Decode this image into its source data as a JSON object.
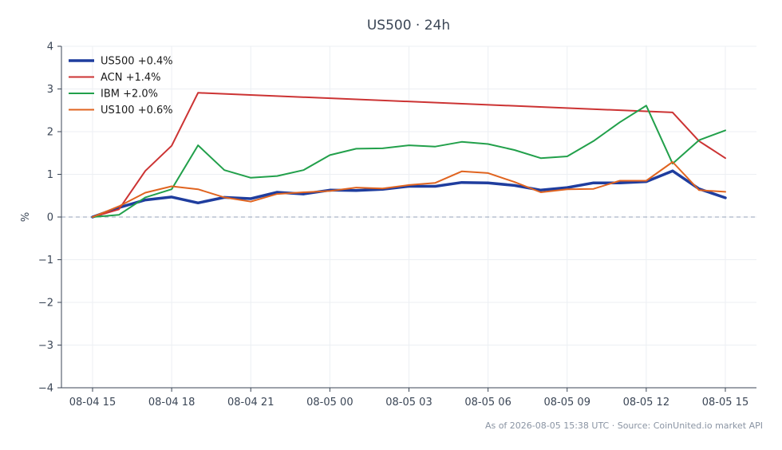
{
  "chart_data": {
    "type": "line",
    "title": "US500 · 24h",
    "xlabel": "",
    "ylabel": "%",
    "ylim": [
      -4,
      4
    ],
    "yticks": [
      -4,
      -3,
      -2,
      -1,
      0,
      1,
      2,
      3,
      4
    ],
    "ytick_labels": [
      "−4",
      "−3",
      "−2",
      "−1",
      "0",
      "1",
      "2",
      "3",
      "4"
    ],
    "x_tick_labels": [
      "08-04 15",
      "08-04 18",
      "08-04 21",
      "08-05 00",
      "08-05 03",
      "08-05 06",
      "08-05 09",
      "08-05 12",
      "08-05 15"
    ],
    "x_tick_hours": [
      0,
      3,
      6,
      9,
      12,
      15,
      18,
      21,
      24
    ],
    "x_hours": [
      0,
      1,
      2,
      3,
      4,
      5,
      6,
      7,
      8,
      9,
      10,
      11,
      12,
      13,
      14,
      15,
      16,
      17,
      18,
      19,
      20,
      21,
      22,
      23,
      24
    ],
    "grid": true,
    "zero_line": true,
    "legend_position": "top-left",
    "series": [
      {
        "name": "US500 +0.4%",
        "color": "#1f3d9e",
        "width": 3.5,
        "values": [
          0.0,
          0.22,
          0.4,
          0.47,
          0.33,
          0.46,
          0.43,
          0.58,
          0.54,
          0.63,
          0.62,
          0.65,
          0.72,
          0.72,
          0.81,
          0.8,
          0.74,
          0.63,
          0.69,
          0.8,
          0.8,
          0.83,
          1.08,
          0.66,
          0.45
        ]
      },
      {
        "name": "ACN +1.4%",
        "color": "#cc3333",
        "width": 2,
        "x": [
          0,
          1,
          2,
          3,
          4,
          22,
          23,
          24
        ],
        "values": [
          0.0,
          0.18,
          1.08,
          1.67,
          2.91,
          2.45,
          1.78,
          1.38
        ]
      },
      {
        "name": "IBM +2.0%",
        "color": "#22a04b",
        "width": 2,
        "values": [
          0.0,
          0.05,
          0.46,
          0.65,
          1.68,
          1.1,
          0.92,
          0.96,
          1.1,
          1.45,
          1.6,
          1.61,
          1.68,
          1.65,
          1.76,
          1.71,
          1.57,
          1.38,
          1.42,
          1.78,
          2.22,
          2.61,
          1.25,
          1.8,
          2.03
        ]
      },
      {
        "name": "US100 +0.6%",
        "color": "#e06420",
        "width": 2,
        "values": [
          0.0,
          0.25,
          0.57,
          0.72,
          0.65,
          0.46,
          0.36,
          0.54,
          0.58,
          0.61,
          0.69,
          0.67,
          0.75,
          0.8,
          1.07,
          1.03,
          0.82,
          0.58,
          0.65,
          0.66,
          0.85,
          0.85,
          1.29,
          0.63,
          0.59
        ]
      }
    ]
  },
  "footer": "As of 2026-08-05 15:38 UTC · Source: CoinUnited.io market API"
}
